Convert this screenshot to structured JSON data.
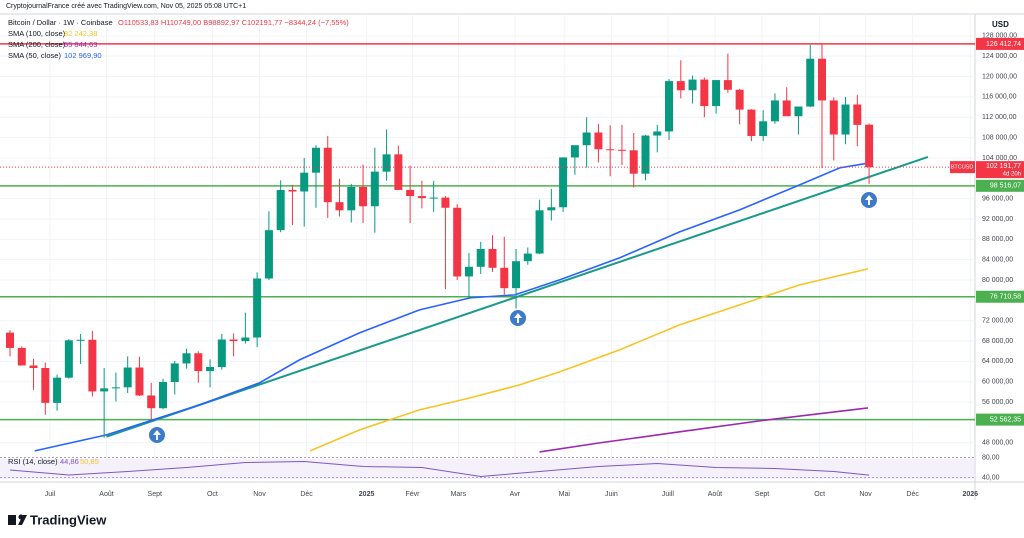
{
  "chart_data": {
    "type": "candlestick",
    "header": "CryptojournalFrance créé avec TradingView.com, Nov 05, 2025 05:08 UTC+1",
    "symbol_line": "Bitcoin / Dollar · 1W · Coinbase",
    "ohlc_text": "O110533,83 H110749,00 B98892,97 C102191,77 −8344,24 (−7,55%)",
    "currency": "USD",
    "logo_text": "TradingView",
    "up_color": "#089981",
    "down_color": "#f23645",
    "xlim": [
      -0.85,
      82.0
    ],
    "ylim": [
      45600,
      131900
    ],
    "grid": true,
    "xticks": [
      {
        "value": 3.4,
        "label": "Juil"
      },
      {
        "value": 8.2,
        "label": "Août"
      },
      {
        "value": 12.3,
        "label": "Sept"
      },
      {
        "value": 17.2,
        "label": "Oct"
      },
      {
        "value": 21.2,
        "label": "Nov"
      },
      {
        "value": 25.2,
        "label": "Déc"
      },
      {
        "value": 30.3,
        "label": "2025"
      },
      {
        "value": 34.2,
        "label": "Févr"
      },
      {
        "value": 38.1,
        "label": "Mars"
      },
      {
        "value": 42.9,
        "label": "Avr"
      },
      {
        "value": 47.1,
        "label": "Mai"
      },
      {
        "value": 51.1,
        "label": "Juin"
      },
      {
        "value": 55.9,
        "label": "Juill"
      },
      {
        "value": 59.9,
        "label": "Août"
      },
      {
        "value": 63.9,
        "label": "Sept"
      },
      {
        "value": 68.8,
        "label": "Oct"
      },
      {
        "value": 72.7,
        "label": "Nov"
      },
      {
        "value": 76.7,
        "label": "Déc"
      },
      {
        "value": 81.6,
        "label": "2026"
      }
    ],
    "yticks": [
      {
        "value": 48000,
        "label": "48 000,00"
      },
      {
        "value": 56000,
        "label": "56 000,00"
      },
      {
        "value": 60000,
        "label": "60 000,00"
      },
      {
        "value": 64000,
        "label": "64 000,00"
      },
      {
        "value": 68000,
        "label": "68 000,00"
      },
      {
        "value": 72000,
        "label": "72 000,00"
      },
      {
        "value": 80000,
        "label": "80 000,00"
      },
      {
        "value": 84000,
        "label": "84 000,00"
      },
      {
        "value": 88000,
        "label": "88 000,00"
      },
      {
        "value": 92000,
        "label": "92 000,00"
      },
      {
        "value": 96000,
        "label": "96 000,00"
      },
      {
        "value": 104000,
        "label": "104 000,00"
      },
      {
        "value": 108000,
        "label": "108 000,00"
      },
      {
        "value": 112000,
        "label": "112 000,00"
      },
      {
        "value": 116000,
        "label": "116 000,00"
      },
      {
        "value": 120000,
        "label": "120 000,00"
      },
      {
        "value": 124000,
        "label": "124 000,00"
      },
      {
        "value": 128000,
        "label": "128 000,00"
      }
    ],
    "candles": {
      "open": [
        69650,
        66650,
        63200,
        62700,
        55850,
        60800,
        68150,
        68250,
        58100,
        58700,
        58900,
        62800,
        57300,
        54800,
        59950,
        63600,
        65600,
        62100,
        62900,
        68300,
        68000,
        68700,
        80300,
        89800,
        97700,
        97400,
        101100,
        106000,
        95300,
        93700,
        98300,
        94500,
        101300,
        104700,
        97700,
        96500,
        96100,
        96200,
        94200,
        80700,
        82600,
        86100,
        82400,
        78400,
        83700,
        85200,
        93700,
        94300,
        104100,
        106500,
        109000,
        105700,
        105600,
        105500,
        100900,
        108400,
        109200,
        119100,
        117300,
        119400,
        114200,
        119300,
        117400,
        113500,
        108300,
        111200,
        115300,
        112200,
        114100,
        123500,
        115300,
        108600,
        114500,
        110533.83
      ],
      "high": [
        70150,
        66950,
        64500,
        63800,
        61400,
        68400,
        69400,
        70000,
        62700,
        61800,
        65000,
        64900,
        59800,
        60600,
        64100,
        66500,
        66000,
        64400,
        69400,
        69500,
        73600,
        81500,
        93500,
        99600,
        98700,
        104000,
        106500,
        108300,
        99900,
        98900,
        102700,
        106000,
        109600,
        106400,
        102500,
        99500,
        99500,
        96500,
        94900,
        85300,
        87500,
        88800,
        88500,
        86100,
        86400,
        95800,
        97900,
        104100,
        105800,
        112000,
        110700,
        110400,
        110500,
        108900,
        108500,
        110500,
        119500,
        123200,
        120200,
        119800,
        119300,
        124500,
        117600,
        113600,
        113400,
        116700,
        117900,
        113400,
        126200,
        126400,
        115900,
        116000,
        116400,
        110749.0
      ],
      "low": [
        65000,
        63400,
        58400,
        53500,
        54300,
        60600,
        63500,
        57100,
        49000,
        56100,
        57800,
        57200,
        52500,
        54600,
        57500,
        62600,
        59800,
        58900,
        62400,
        65000,
        67500,
        66800,
        80000,
        89400,
        90800,
        90500,
        94200,
        92200,
        92500,
        91300,
        91200,
        89300,
        99500,
        97700,
        91200,
        94100,
        93400,
        78200,
        80000,
        76600,
        81200,
        81600,
        77100,
        74400,
        83000,
        85100,
        91700,
        93400,
        100700,
        102100,
        103100,
        100400,
        102600,
        98200,
        99600,
        105100,
        107500,
        115700,
        114700,
        112000,
        112700,
        116800,
        110600,
        107300,
        107300,
        110700,
        114400,
        108600,
        114000,
        102000,
        103500,
        106700,
        106300,
        98892.97
      ],
      "close": [
        66650,
        63200,
        62700,
        55850,
        60800,
        68150,
        68250,
        58100,
        58700,
        58900,
        62800,
        57300,
        54800,
        59950,
        63600,
        65600,
        62100,
        62900,
        68300,
        68000,
        68700,
        80300,
        89800,
        97700,
        97400,
        101100,
        106000,
        95300,
        93700,
        98300,
        94500,
        101300,
        104700,
        97700,
        96500,
        96100,
        96200,
        94200,
        80700,
        82600,
        86100,
        82400,
        78400,
        83700,
        85200,
        93700,
        94300,
        104100,
        106500,
        109000,
        105700,
        105600,
        105500,
        100900,
        108400,
        109200,
        119100,
        117300,
        119400,
        114200,
        119300,
        117400,
        113500,
        108300,
        111200,
        115300,
        112200,
        114100,
        123500,
        115300,
        108600,
        114500,
        110500,
        102191.77
      ]
    },
    "series": [
      {
        "name": "SMA (100, close)",
        "value_label": "82 242,38",
        "color": "#f7c325",
        "x": [
          25.5,
          29.7,
          34.8,
          39.1,
          43.3,
          46.7,
          51.8,
          56.9,
          62.0,
          67.1,
          72.9
        ],
        "values": [
          46410,
          50540,
          54470,
          56830,
          59390,
          61940,
          66270,
          71190,
          75120,
          79050,
          82190
        ]
      },
      {
        "name": "SMA (200, close)",
        "value_label": "55 844,63",
        "color": "#9c27b0",
        "x": [
          45.0,
          50.1,
          56.9,
          63.7,
          72.9
        ],
        "values": [
          46210,
          47980,
          50150,
          52310,
          54860
        ]
      },
      {
        "name": "SMA (50, close)",
        "value_label": "102 969,90",
        "color": "#2962ff",
        "x": [
          2.1,
          8.2,
          16.1,
          21.2,
          24.6,
          29.7,
          34.8,
          39.1,
          42.9,
          46.7,
          51.8,
          56.9,
          62.0,
          67.1,
          70.5,
          72.9
        ],
        "values": [
          46410,
          49560,
          55460,
          59780,
          64300,
          69610,
          74130,
          76490,
          77080,
          80030,
          84350,
          89460,
          93790,
          98710,
          102050,
          102970
        ]
      }
    ],
    "trendline": {
      "color": "#1a9a8a",
      "x": [
        8.2,
        78.0
      ],
      "values": [
        49200,
        104200
      ]
    },
    "levels": [
      {
        "value": 126412.74,
        "label": "126 412,74",
        "color": "#f23645"
      },
      {
        "value": 98516.07,
        "label": "98 516,07",
        "color": "#4caf50"
      },
      {
        "value": 76710.58,
        "label": "76 710,58",
        "color": "#4caf50"
      },
      {
        "value": 52562.35,
        "label": "52 562,35",
        "color": "#4caf50"
      }
    ],
    "price_label": {
      "symbol": "BTCUSD",
      "value": 102191.77,
      "label": "102 191,77",
      "countdown": "4d 20h"
    },
    "rsi": {
      "title": "RSI (14, close)",
      "value_label": "44,86",
      "ma_label": "50,85",
      "color": "#7e57c2",
      "ylim": [
        35,
        85
      ],
      "yticks": [
        {
          "value": 80,
          "label": "80,00"
        },
        {
          "value": 40,
          "label": "40,00"
        }
      ],
      "x": [
        0,
        5,
        10,
        15,
        20,
        25,
        30,
        35,
        40,
        45,
        50,
        55,
        60,
        65,
        70,
        73
      ],
      "values": [
        55,
        45,
        52,
        60,
        70,
        72,
        62,
        60,
        42,
        52,
        62,
        68,
        60,
        58,
        52,
        44.86
      ]
    }
  }
}
